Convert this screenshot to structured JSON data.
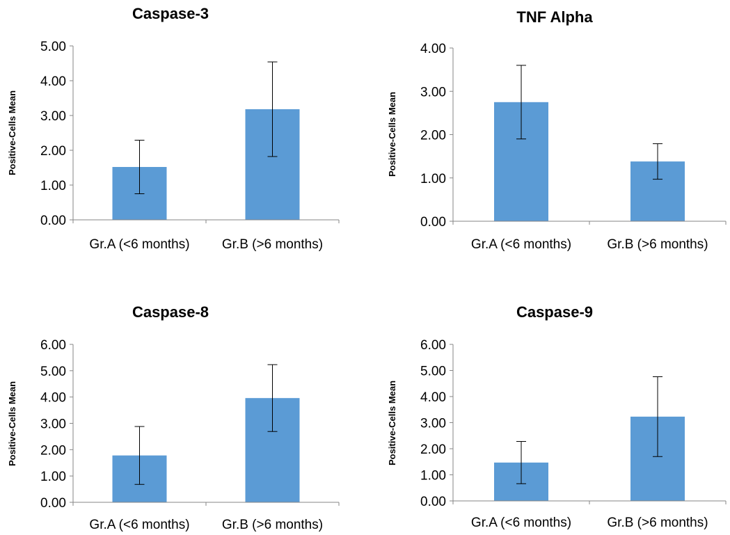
{
  "colors": {
    "bar": "#5b9bd5",
    "axis": "#868686",
    "text": "#000000"
  },
  "chart_data": [
    {
      "type": "bar",
      "title": "Caspase-3",
      "ylabel": "Positive-Cells Mean",
      "xlabel": "",
      "categories": [
        "Gr.A (<6 months)",
        "Gr.B (>6 months)"
      ],
      "values": [
        1.52,
        3.18
      ],
      "error": [
        0.77,
        1.36
      ],
      "ylim": [
        0,
        5
      ],
      "ystep": 1,
      "yticks": [
        "0.00",
        "1.00",
        "2.00",
        "3.00",
        "4.00",
        "5.00"
      ],
      "grid": false,
      "legend": "none"
    },
    {
      "type": "bar",
      "title": "TNF Alpha",
      "ylabel": "Positive-Cells Mean",
      "xlabel": "",
      "categories": [
        "Gr.A (<6 months)",
        "Gr.B (>6 months)"
      ],
      "values": [
        2.75,
        1.38
      ],
      "error": [
        0.85,
        0.41
      ],
      "ylim": [
        0,
        4
      ],
      "ystep": 1,
      "yticks": [
        "0.00",
        "1.00",
        "2.00",
        "3.00",
        "4.00"
      ],
      "grid": false,
      "legend": "none"
    },
    {
      "type": "bar",
      "title": "Caspase-8",
      "ylabel": "Positive-Cells Mean",
      "xlabel": "",
      "categories": [
        "Gr.A (<6 months)",
        "Gr.B (>6 months)"
      ],
      "values": [
        1.78,
        3.96
      ],
      "error": [
        1.1,
        1.27
      ],
      "ylim": [
        0,
        6
      ],
      "ystep": 1,
      "yticks": [
        "0.00",
        "1.00",
        "2.00",
        "3.00",
        "4.00",
        "5.00",
        "6.00"
      ],
      "grid": false,
      "legend": "none"
    },
    {
      "type": "bar",
      "title": "Caspase-9",
      "ylabel": "Positive-Cells Mean",
      "xlabel": "",
      "categories": [
        "Gr.A (<6 months)",
        "Gr.B (>6 months)"
      ],
      "values": [
        1.47,
        3.23
      ],
      "error": [
        0.81,
        1.53
      ],
      "ylim": [
        0,
        6
      ],
      "ystep": 1,
      "yticks": [
        "0.00",
        "1.00",
        "2.00",
        "3.00",
        "4.00",
        "5.00",
        "6.00"
      ],
      "grid": false,
      "legend": "none"
    }
  ]
}
